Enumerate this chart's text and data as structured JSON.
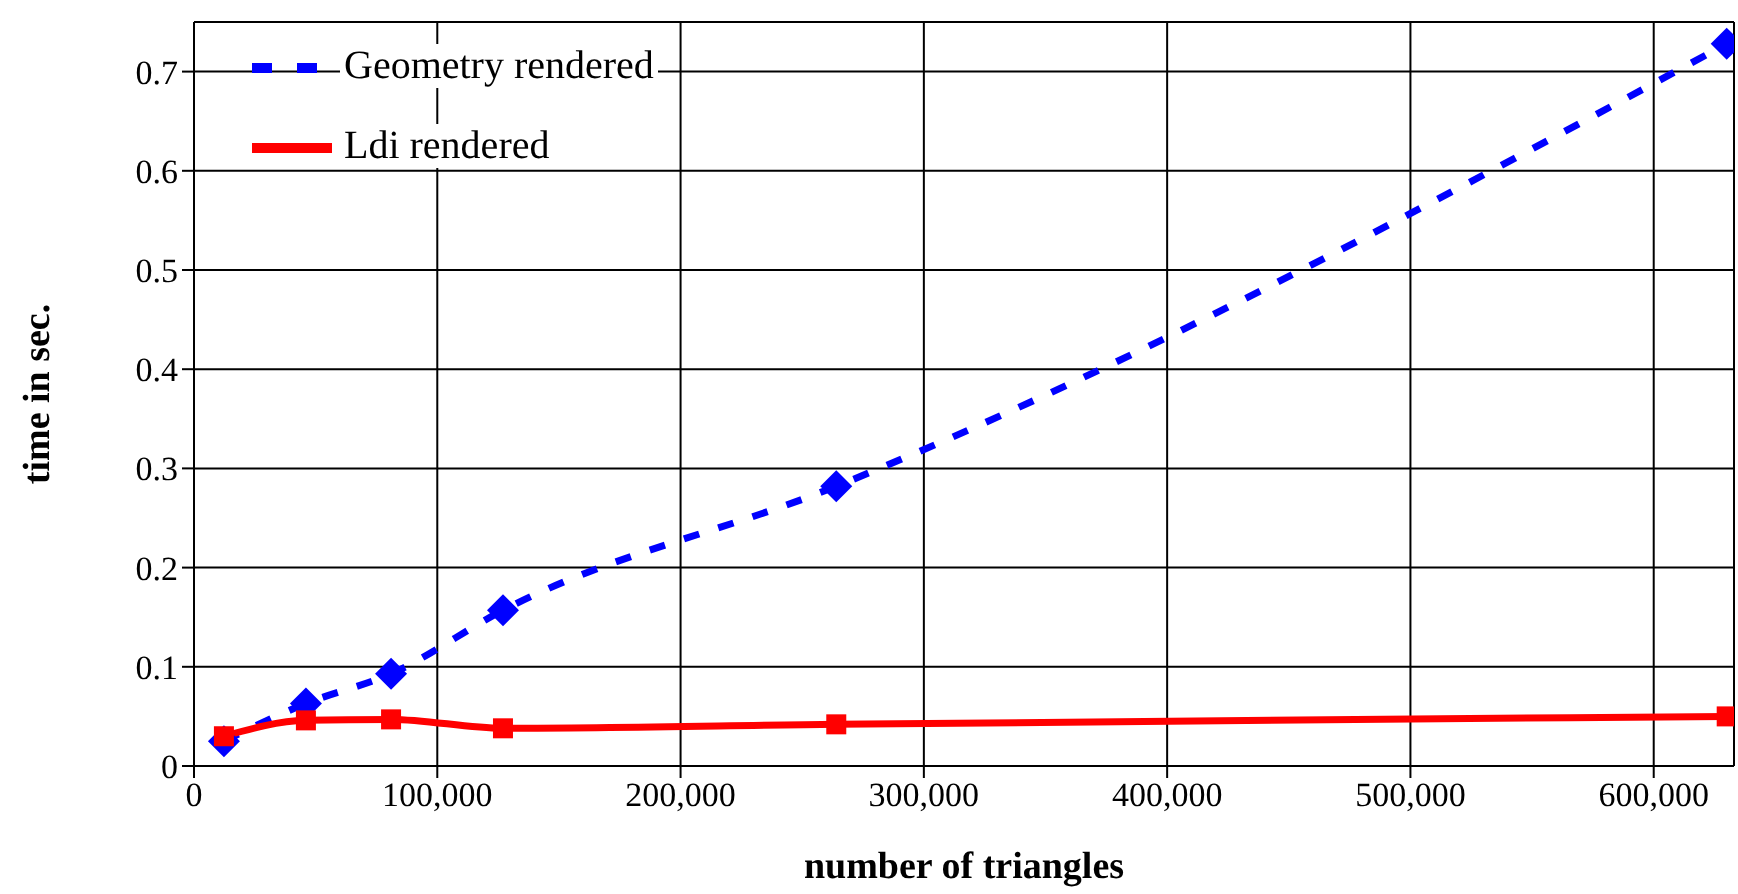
{
  "chart_data": {
    "type": "line",
    "xlabel": "number of triangles",
    "ylabel": "time in sec.",
    "x": [
      12300,
      46000,
      81000,
      127000,
      264000,
      630000
    ],
    "series": [
      {
        "name": "Geometry rendered",
        "color": "#0000ff",
        "values": [
          0.025,
          0.063,
          0.093,
          0.157,
          0.282,
          0.728
        ],
        "line_style": "dashed",
        "marker": "diamond"
      },
      {
        "name": "Ldi rendered",
        "color": "#ff0000",
        "values": [
          0.03,
          0.046,
          0.047,
          0.038,
          0.042,
          0.05
        ],
        "line_style": "solid",
        "marker": "square"
      }
    ],
    "xlim": [
      0,
      633000
    ],
    "xticks": [
      0,
      {
        "value": 100000,
        "label": "100,000"
      },
      {
        "value": 200000,
        "label": "200,000"
      },
      {
        "value": 300000,
        "label": "300,000"
      },
      {
        "value": 400000,
        "label": "400,000"
      },
      {
        "value": 500000,
        "label": "500,000"
      },
      {
        "value": 600000,
        "label": "600,000"
      }
    ],
    "ylim": [
      0,
      0.75
    ],
    "yticks": [
      0,
      0.1,
      0.2,
      0.3,
      0.4,
      0.5,
      0.6,
      0.7
    ],
    "grid": true,
    "legend": "top left"
  }
}
